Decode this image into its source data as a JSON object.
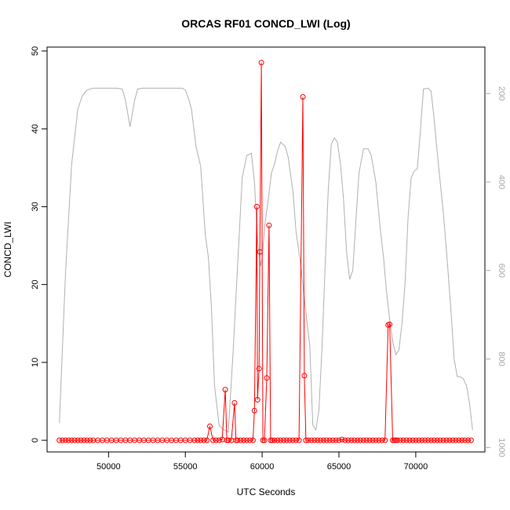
{
  "chart_data": {
    "type": "line",
    "title": "ORCAS RF01 CONCD_LWI (Log)",
    "xlabel": "UTC Seconds",
    "ylabel": "CONCD_LWI",
    "xlim": [
      46000,
      74500
    ],
    "ylim": [
      -1.5,
      50.5
    ],
    "x_ticks": [
      "50000",
      "55000",
      "60000",
      "65000",
      "70000"
    ],
    "y_ticks": [
      "0",
      "10",
      "20",
      "30",
      "40",
      "50"
    ],
    "y2_ticks": [
      "200",
      "400",
      "600",
      "800",
      "1000"
    ],
    "y2lim": [
      95,
      1010
    ],
    "grid": false,
    "colors": {
      "concd": "#ff0000",
      "pressure": "#b0b0b0",
      "right_axis": "#a9a9a9"
    },
    "series": [
      {
        "role": "primary",
        "x": [
          46800,
          47000,
          47200,
          47400,
          47600,
          47800,
          48000,
          48200,
          48400,
          48600,
          48800,
          49000,
          49300,
          49600,
          49900,
          50200,
          50500,
          50800,
          51100,
          51400,
          51700,
          52000,
          52300,
          52600,
          52900,
          53200,
          53500,
          53800,
          54100,
          54400,
          54700,
          55000,
          55300,
          55600,
          55800,
          56000,
          56200,
          56400,
          56600,
          56800,
          57000,
          57200,
          57400,
          57600,
          57700,
          57800,
          58000,
          58200,
          58300,
          58400,
          58600,
          58800,
          59000,
          59200,
          59400,
          59500,
          59650,
          59700,
          59800,
          59850,
          59950,
          60050,
          60150,
          60300,
          60450,
          60550,
          60650,
          60800,
          61000,
          61200,
          61400,
          61600,
          61800,
          62000,
          62200,
          62400,
          62650,
          62750,
          62850,
          63000,
          63200,
          63400,
          63600,
          63800,
          64000,
          64200,
          64400,
          64600,
          64800,
          65000,
          65200,
          65400,
          65600,
          65800,
          66000,
          66200,
          66400,
          66600,
          66800,
          67000,
          67200,
          67400,
          67600,
          67800,
          68000,
          68200,
          68300,
          68500,
          68600,
          68700,
          68800,
          69000,
          69200,
          69400,
          69600,
          69800,
          70000,
          70200,
          70400,
          70600,
          70800,
          71000,
          71200,
          71400,
          71600,
          71800,
          72000,
          72200,
          72400,
          72600,
          72800,
          73000,
          73200,
          73400,
          73600
        ],
        "y": [
          0,
          0,
          0,
          0,
          0,
          0,
          0,
          0,
          0,
          0,
          0,
          0,
          0,
          0,
          0,
          0,
          0,
          0,
          0,
          0,
          0,
          0,
          0,
          0,
          0,
          0,
          0,
          0,
          0,
          0,
          0,
          0,
          0,
          0,
          0,
          0,
          0,
          0,
          1.8,
          0,
          0,
          0,
          0.1,
          6.5,
          0,
          0,
          0,
          4.8,
          0,
          0,
          0,
          0,
          0,
          0,
          0,
          3.8,
          30,
          5.2,
          9.2,
          24.2,
          48.5,
          0,
          0,
          8,
          27.6,
          0,
          0,
          0,
          0,
          0,
          0,
          0,
          0,
          0,
          0,
          0,
          44.1,
          8.3,
          0,
          0,
          0,
          0,
          0,
          0,
          0,
          0,
          0,
          0,
          0,
          0,
          0.1,
          0,
          0,
          0,
          0,
          0,
          0,
          0,
          0,
          0,
          0,
          0,
          0,
          0,
          0,
          14.8,
          14.9,
          0,
          0,
          0,
          0,
          0,
          0,
          0,
          0,
          0,
          0,
          0,
          0,
          0,
          0,
          0,
          0,
          0,
          0,
          0,
          0,
          0,
          0,
          0,
          0,
          0,
          0,
          0,
          0
        ]
      },
      {
        "role": "secondary",
        "x": [
          46800,
          47200,
          47600,
          48000,
          48300,
          48600,
          49000,
          49500,
          50000,
          50500,
          50900,
          51100,
          51400,
          51700,
          51900,
          52200,
          52600,
          53000,
          53500,
          54000,
          54500,
          54800,
          55000,
          55200,
          55400,
          55700,
          56000,
          56300,
          56500,
          56700,
          56900,
          57200,
          57500,
          57800,
          58100,
          58400,
          58700,
          59000,
          59300,
          59500,
          59700,
          59900,
          60000,
          60200,
          60400,
          60600,
          60800,
          61000,
          61200,
          61500,
          61700,
          62000,
          62200,
          62500,
          62800,
          63100,
          63300,
          63500,
          63700,
          63900,
          64100,
          64300,
          64500,
          64700,
          64900,
          65100,
          65300,
          65500,
          65700,
          65900,
          66100,
          66300,
          66600,
          66900,
          67100,
          67400,
          67700,
          67900,
          68100,
          68300,
          68500,
          68700,
          68900,
          69100,
          69300,
          69500,
          69700,
          69900,
          70100,
          70300,
          70500,
          70800,
          71000,
          71200,
          71500,
          71800,
          72100,
          72300,
          72500,
          72700,
          72900,
          73100,
          73300,
          73500,
          73700
        ],
        "y": [
          945,
          605,
          360,
          235,
          205,
          192,
          188,
          188,
          188,
          188,
          190,
          215,
          275,
          215,
          190,
          188,
          188,
          188,
          188,
          188,
          188,
          188,
          192,
          210,
          235,
          320,
          365,
          520,
          570,
          685,
          860,
          950,
          960,
          965,
          790,
          590,
          390,
          340,
          335,
          400,
          530,
          590,
          570,
          490,
          440,
          380,
          360,
          330,
          310,
          320,
          345,
          420,
          510,
          585,
          680,
          770,
          950,
          960,
          915,
          770,
          590,
          420,
          315,
          300,
          310,
          360,
          440,
          560,
          620,
          600,
          490,
          380,
          325,
          325,
          340,
          400,
          510,
          570,
          650,
          710,
          760,
          790,
          780,
          720,
          630,
          480,
          390,
          375,
          370,
          285,
          190,
          188,
          195,
          260,
          370,
          470,
          600,
          695,
          800,
          840,
          840,
          845,
          860,
          900,
          960
        ]
      }
    ]
  }
}
